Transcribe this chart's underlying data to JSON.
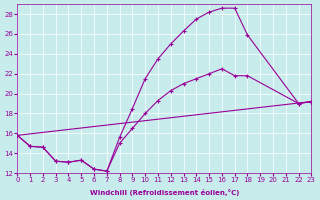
{
  "xlabel": "Windchill (Refroidissement éolien,°C)",
  "bg_color": "#c8ecec",
  "line_color": "#990099",
  "grid_color": "#ffffff",
  "xmin": 0,
  "xmax": 23,
  "ymin": 12,
  "ymax": 29,
  "yticks": [
    12,
    14,
    16,
    18,
    20,
    22,
    24,
    26,
    28
  ],
  "line1_x": [
    0,
    1,
    2,
    3,
    4,
    5,
    6,
    7,
    8,
    9,
    10,
    11,
    12,
    13,
    14,
    15,
    16,
    17,
    18,
    22,
    23
  ],
  "line1_y": [
    15.8,
    14.7,
    14.6,
    13.2,
    13.1,
    13.3,
    12.4,
    12.2,
    15.6,
    18.5,
    21.5,
    23.5,
    25.0,
    26.3,
    27.5,
    28.2,
    28.6,
    28.6,
    25.9,
    19.0,
    19.2
  ],
  "line2_x": [
    0,
    1,
    2,
    3,
    4,
    5,
    6,
    7,
    8,
    9,
    10,
    11,
    12,
    13,
    14,
    15,
    16,
    17,
    18,
    22,
    23
  ],
  "line2_y": [
    15.8,
    14.7,
    14.6,
    13.2,
    13.1,
    13.3,
    12.4,
    12.2,
    15.0,
    16.5,
    18.0,
    19.3,
    20.3,
    21.0,
    21.5,
    22.0,
    22.5,
    21.8,
    21.8,
    19.0,
    19.2
  ],
  "line3_x": [
    0,
    23
  ],
  "line3_y": [
    15.8,
    19.2
  ]
}
